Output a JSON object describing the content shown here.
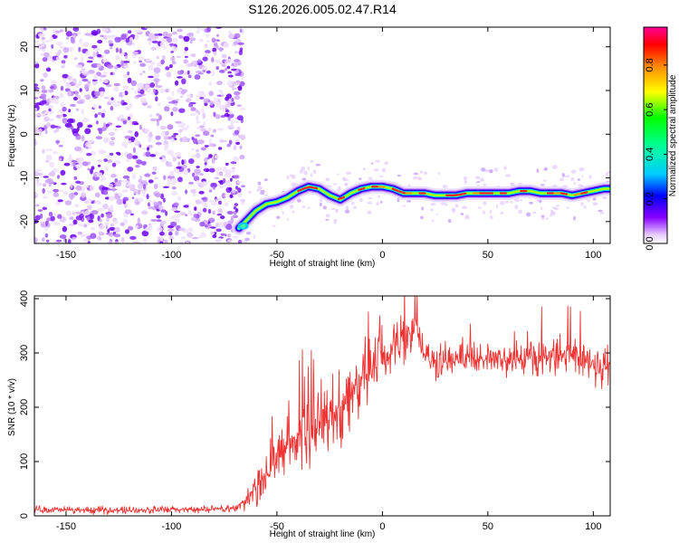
{
  "title": "S126.2026.005.02.47.R14",
  "chart_data": [
    {
      "type": "heatmap",
      "name": "spectrogram",
      "xlabel": "Height of straight line (km)",
      "ylabel": "Frequency (Hz)",
      "xlim": [
        -165,
        108
      ],
      "ylim": [
        -25,
        24.5
      ],
      "xticks": [
        -150,
        -100,
        -50,
        0,
        50,
        100
      ],
      "yticks": [
        -20,
        -10,
        0,
        10,
        20
      ],
      "noise_region_x": [
        -165,
        -68
      ],
      "ridge": {
        "x": [
          -68,
          -65,
          -60,
          -55,
          -50,
          -45,
          -40,
          -35,
          -30,
          -25,
          -20,
          -15,
          -10,
          -5,
          0,
          5,
          10,
          15,
          20,
          25,
          30,
          35,
          40,
          45,
          50,
          55,
          60,
          65,
          70,
          75,
          80,
          85,
          90,
          95,
          100,
          105,
          108
        ],
        "y": [
          -21.5,
          -20,
          -17.5,
          -16,
          -15.5,
          -14.5,
          -13,
          -12,
          -12.5,
          -14,
          -15,
          -13.5,
          -12.5,
          -12,
          -12,
          -12.5,
          -13.5,
          -13.5,
          -13.5,
          -14,
          -14,
          -14,
          -13.5,
          -13.5,
          -13.5,
          -13.5,
          -13.5,
          -13,
          -13,
          -13.5,
          -13.5,
          -13.5,
          -14,
          -13.5,
          -13,
          -12.5,
          -12.5
        ]
      },
      "colorbar": {
        "label": "Normalized spectral amplitude",
        "range": [
          0.0,
          0.97
        ],
        "ticks": [
          "0.0",
          "0.2",
          "0.4",
          "0.6",
          "0.8"
        ],
        "tick_values": [
          0.0,
          0.2,
          0.4,
          0.6,
          0.8
        ]
      }
    },
    {
      "type": "line",
      "name": "snr",
      "xlabel": "Height of straight line (km)",
      "ylabel": "SNR (10 * v/v)",
      "xlim": [
        -165,
        108
      ],
      "ylim": [
        0,
        405
      ],
      "xticks": [
        -150,
        -100,
        -50,
        0,
        50,
        100
      ],
      "yticks": [
        0,
        100,
        200,
        300,
        400
      ],
      "color": "#ee3333",
      "envelope": {
        "x": [
          -165,
          -140,
          -110,
          -80,
          -70,
          -65,
          -60,
          -55,
          -50,
          -45,
          -40,
          -35,
          -30,
          -25,
          -20,
          -15,
          -10,
          -5,
          0,
          5,
          10,
          15,
          18,
          20,
          25,
          30,
          40,
          50,
          60,
          70,
          80,
          90,
          95,
          100,
          105,
          108
        ],
        "y": [
          12,
          10,
          11,
          12,
          14,
          25,
          55,
          80,
          110,
          125,
          140,
          155,
          170,
          185,
          200,
          225,
          245,
          265,
          290,
          310,
          330,
          355,
          330,
          290,
          280,
          285,
          290,
          290,
          285,
          290,
          295,
          295,
          290,
          280,
          275,
          285
        ]
      },
      "noise_amplitude": {
        "x": [
          -165,
          -70,
          -60,
          -40,
          -20,
          0,
          15,
          20,
          60,
          90,
          108
        ],
        "y": [
          6,
          6,
          30,
          60,
          70,
          55,
          40,
          25,
          25,
          35,
          40
        ]
      }
    }
  ]
}
